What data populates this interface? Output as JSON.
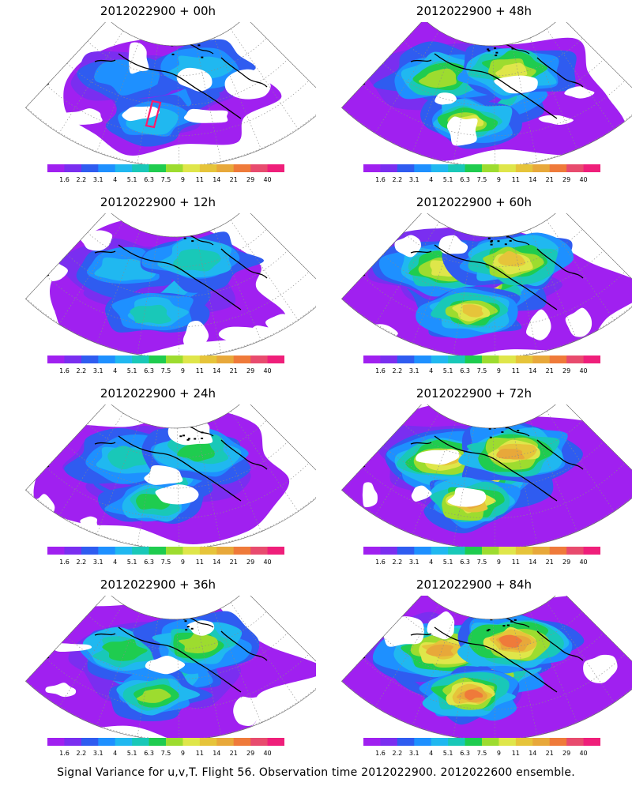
{
  "colorbar": {
    "labels": [
      "1.6",
      "2.2",
      "3.1",
      "4",
      "5.1",
      "6.3",
      "7.5",
      "9",
      "11",
      "14",
      "21",
      "29",
      "40"
    ],
    "colors": [
      "#a020f0",
      "#7a2ef0",
      "#2f5cf0",
      "#1e90ff",
      "#20b8f0",
      "#19c8b8",
      "#1fcc4f",
      "#9ddc2f",
      "#dfe64a",
      "#e6c43a",
      "#e8a83a",
      "#ef7a3a",
      "#e84b6e",
      "#ef1f7a"
    ]
  },
  "map_style": {
    "background": "#ffffff",
    "coast": "#000000",
    "grid": "#8a8a8a",
    "box": "#ff1a6a"
  },
  "panels": [
    {
      "title": "2012022900 + 00h",
      "intensity": 0,
      "obs_box": true
    },
    {
      "title": "2012022900 + 12h",
      "intensity": 1,
      "obs_box": false
    },
    {
      "title": "2012022900 + 24h",
      "intensity": 2,
      "obs_box": false
    },
    {
      "title": "2012022900 + 36h",
      "intensity": 3,
      "obs_box": false
    },
    {
      "title": "2012022900 + 48h",
      "intensity": 4,
      "obs_box": false
    },
    {
      "title": "2012022900 + 60h",
      "intensity": 5,
      "obs_box": false
    },
    {
      "title": "2012022900 + 72h",
      "intensity": 6,
      "obs_box": false
    },
    {
      "title": "2012022900 + 84h",
      "intensity": 7,
      "obs_box": false
    }
  ],
  "footer": "Signal Variance for u,v,T. Flight 56. Observation time 2012022900. 2012022600 ensemble."
}
